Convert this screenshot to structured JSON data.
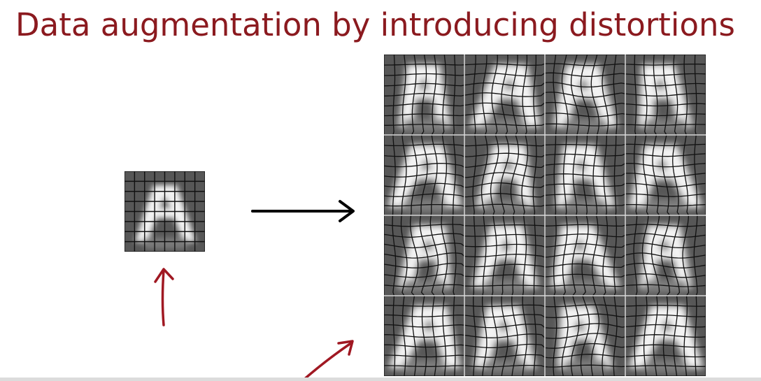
{
  "slide": {
    "title": "Data augmentation by introducing distortions"
  },
  "colors": {
    "title": "#8b1a1f",
    "annotation_arrows": "#a01822",
    "main_arrow": "#000000",
    "tile_background": "#575757",
    "letter_fill": "#f4f4f4",
    "grid_lines": "#111111",
    "bottom_bar": "#dcdcdc"
  },
  "original_image": {
    "glyph": "A",
    "grid": "8x8"
  },
  "distorted_images": {
    "glyph": "A",
    "rows": 4,
    "columns": 4
  },
  "icons": [
    "arrow-right-icon",
    "arrow-up-icon",
    "arrow-diagonal-icon"
  ]
}
